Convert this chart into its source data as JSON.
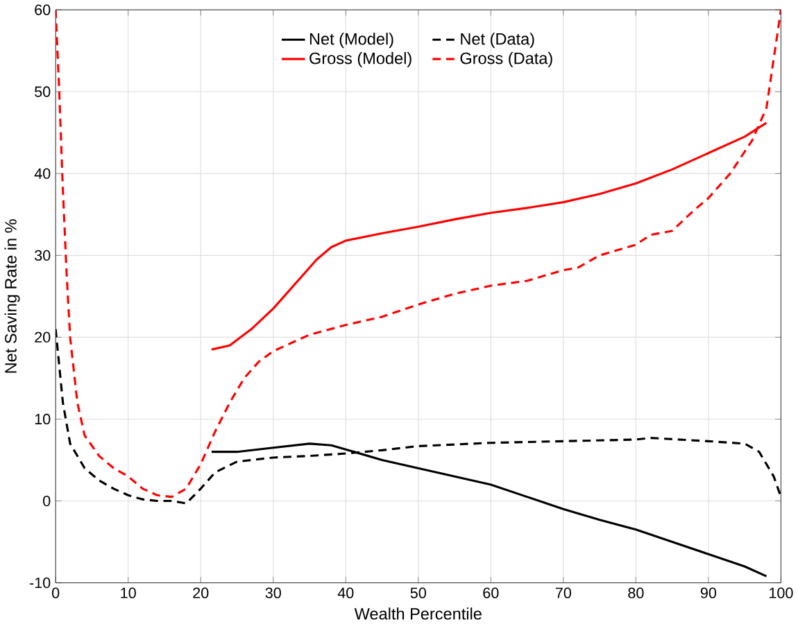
{
  "chart_data": {
    "type": "line",
    "xlabel": "Wealth Percentile",
    "ylabel": "Net Saving Rate in %",
    "xlim": [
      0,
      100
    ],
    "ylim": [
      -10,
      60
    ],
    "xticks": [
      0,
      10,
      20,
      30,
      40,
      50,
      60,
      70,
      80,
      90,
      100
    ],
    "yticks": [
      -10,
      0,
      10,
      20,
      30,
      40,
      50,
      60
    ],
    "grid": true,
    "legend": "top",
    "series": [
      {
        "name": "Net (Model)",
        "color": "#000000",
        "line_style": "solid",
        "x": [
          21.5,
          25,
          30,
          35,
          38,
          40,
          45,
          50,
          55,
          60,
          65,
          70,
          75,
          80,
          85,
          90,
          95,
          98
        ],
        "values": [
          6,
          6,
          6.5,
          7,
          6.8,
          6.3,
          5,
          4,
          3,
          2,
          0.5,
          -1,
          -2.3,
          -3.5,
          -5,
          -6.5,
          -8,
          -9.2
        ]
      },
      {
        "name": "Net (Data)",
        "color": "#000000",
        "line_style": "dashed",
        "x": [
          0,
          1,
          2,
          4,
          6,
          8,
          10,
          12,
          14,
          16,
          18,
          20,
          22,
          25,
          30,
          35,
          40,
          45,
          50,
          60,
          70,
          80,
          82,
          90,
          95,
          97,
          99,
          100
        ],
        "values": [
          21,
          12,
          7,
          4,
          2.5,
          1.5,
          0.7,
          0.2,
          0,
          0,
          -0.3,
          1.5,
          3.5,
          4.8,
          5.3,
          5.5,
          5.8,
          6.2,
          6.7,
          7.1,
          7.3,
          7.5,
          7.7,
          7.3,
          7,
          6,
          3,
          0.5
        ]
      },
      {
        "name": "Gross (Model)",
        "color": "#ff0000",
        "line_style": "solid",
        "x": [
          21.5,
          24,
          27,
          30,
          33,
          36,
          38,
          40,
          45,
          50,
          55,
          60,
          65,
          70,
          75,
          80,
          85,
          90,
          95,
          98
        ],
        "values": [
          18.5,
          19,
          21,
          23.5,
          26.5,
          29.5,
          31,
          31.8,
          32.7,
          33.5,
          34.4,
          35.2,
          35.8,
          36.5,
          37.5,
          38.8,
          40.5,
          42.5,
          44.5,
          46.2
        ]
      },
      {
        "name": "Gross (Data)",
        "color": "#ff0000",
        "line_style": "dashed",
        "x": [
          0,
          0.5,
          1,
          1.5,
          2,
          3,
          4,
          6,
          8,
          10,
          12,
          14,
          16,
          18,
          20,
          22,
          24,
          26,
          28,
          30,
          35,
          40,
          45,
          50,
          55,
          60,
          65,
          70,
          72,
          75,
          80,
          82,
          85,
          88,
          90,
          93,
          96,
          98,
          99,
          100
        ],
        "values": [
          60,
          50,
          38,
          28,
          20,
          12,
          8,
          5.5,
          4,
          3,
          1.5,
          0.7,
          0.5,
          1.5,
          4.5,
          8.5,
          12,
          15,
          17,
          18.3,
          20.3,
          21.5,
          22.5,
          24,
          25.3,
          26.3,
          26.9,
          28.2,
          28.5,
          30,
          31.3,
          32.5,
          33,
          35.5,
          37,
          40,
          44,
          48,
          54,
          60
        ]
      }
    ]
  }
}
